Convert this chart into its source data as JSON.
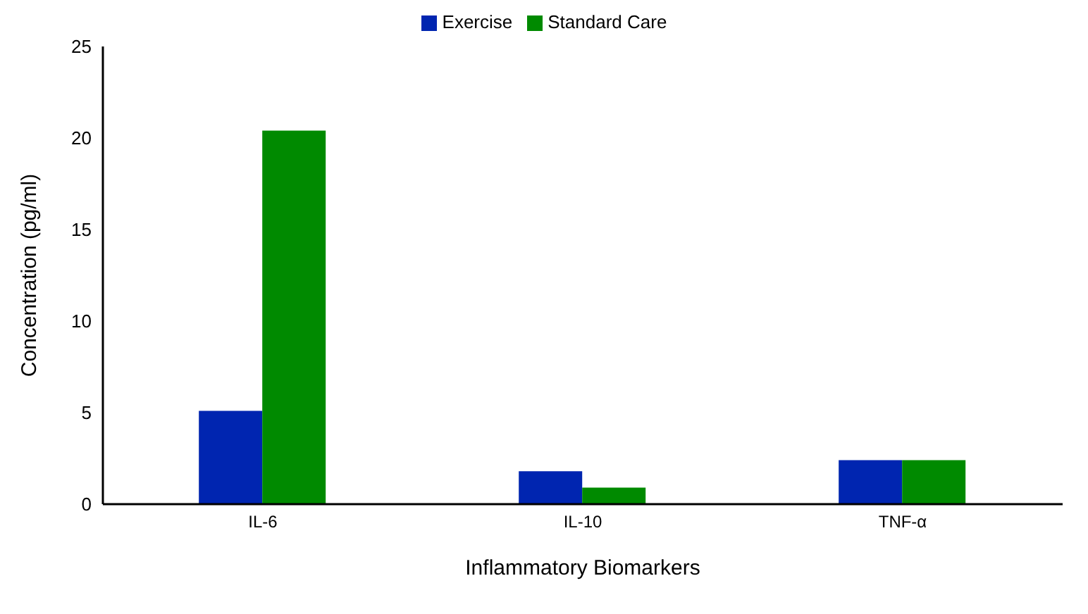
{
  "chart_data": {
    "type": "bar",
    "xlabel": "Inflammatory Biomarkers",
    "ylabel": "Concentration (pg/ml)",
    "categories": [
      "IL-6",
      "IL-10",
      "TNF-α"
    ],
    "series": [
      {
        "name": "Exercise",
        "color": "#0025b0",
        "values": [
          5.1,
          1.8,
          2.4
        ]
      },
      {
        "name": "Standard Care",
        "color": "#008a00",
        "values": [
          20.4,
          0.9,
          2.4
        ]
      }
    ],
    "ylim": [
      0,
      25
    ],
    "yticks": [
      0,
      5,
      10,
      15,
      20,
      25
    ],
    "legend": "top"
  }
}
